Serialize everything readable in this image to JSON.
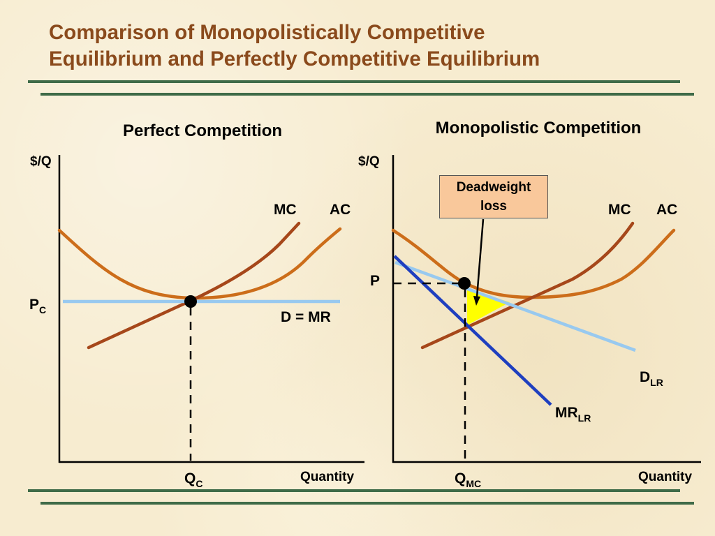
{
  "slide": {
    "title_line1": "Comparison of Monopolistically Competitive",
    "title_line2": "Equilibrium and Perfectly Competitive Equilibrium",
    "colors": {
      "title": "#8a4a1c",
      "rule": "#3f6b48",
      "ac_curve": "#cc6d1a",
      "mc_curve": "#a6471a",
      "demand_lr": "#98c9ef",
      "mr_lr": "#1f3fbf",
      "deadweight_loss": "#ffff00",
      "callout_fill": "#f9c89b"
    }
  },
  "perfect": {
    "title": "Perfect Competition",
    "yaxis": "$/Q",
    "xaxis": "Quantity",
    "mc": "MC",
    "ac": "AC",
    "price": "P",
    "price_sub": "C",
    "quantity": "Q",
    "quantity_sub": "C",
    "demand": "D = MR"
  },
  "monopolistic": {
    "title": "Monopolistic Competition",
    "yaxis": "$/Q",
    "xaxis": "Quantity",
    "mc": "MC",
    "ac": "AC",
    "price": "P",
    "quantity": "Q",
    "quantity_sub": "MC",
    "demand": "D",
    "demand_sub": "LR",
    "mr": "MR",
    "mr_sub": "LR",
    "callout_line1": "Deadweight",
    "callout_line2": "loss"
  }
}
